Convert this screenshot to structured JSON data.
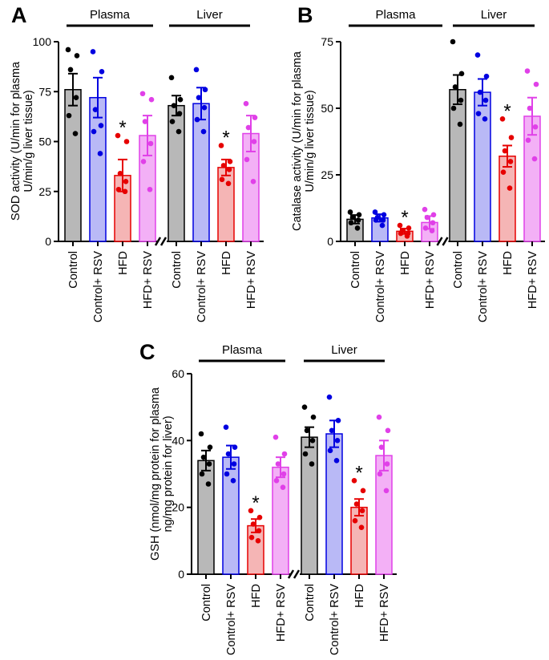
{
  "chart_data": [
    {
      "panel": "A",
      "type": "bar",
      "ylabel_lines": [
        "SOD activity (U/min for plasma",
        "U/min/g liver tissue)"
      ],
      "ylim": [
        0,
        100
      ],
      "yticks": [
        "0",
        "25",
        "50",
        "75",
        "100"
      ],
      "groups": [
        {
          "label": "Plasma",
          "categories": [
            "Control",
            "Control+ RSV",
            "HFD",
            "HFD+ RSV"
          ],
          "values": [
            76,
            72,
            33,
            53
          ],
          "errors": [
            8,
            10,
            8,
            10
          ],
          "significant": [
            false,
            false,
            true,
            false
          ],
          "points": [
            [
              96,
              93,
              86,
              72,
              63,
              54
            ],
            [
              95,
              85,
              66,
              58,
              55,
              44
            ],
            [
              53,
              50,
              34,
              30,
              26,
              25
            ],
            [
              74,
              71,
              60,
              49,
              40,
              26
            ]
          ]
        },
        {
          "label": "Liver",
          "categories": [
            "Control",
            "Control+ RSV",
            "HFD",
            "HFD+ RSV"
          ],
          "values": [
            68,
            69,
            37,
            54
          ],
          "errors": [
            5,
            8,
            4,
            9
          ],
          "significant": [
            false,
            false,
            true,
            false
          ],
          "points": [
            [
              82,
              71,
              68,
              64,
              60,
              55
            ],
            [
              86,
              76,
              72,
              67,
              61,
              55
            ],
            [
              48,
              40,
              38,
              36,
              31,
              29
            ],
            [
              69,
              62,
              57,
              50,
              41,
              30
            ]
          ]
        }
      ]
    },
    {
      "panel": "B",
      "type": "bar",
      "ylabel_lines": [
        "Catalase activity (U/min for plasma",
        "U/min/g liver tissue)"
      ],
      "ylim": [
        0,
        75
      ],
      "yticks": [
        "0",
        "25",
        "50",
        "75"
      ],
      "groups": [
        {
          "label": "Plasma",
          "categories": [
            "Control",
            "Control+ RSV",
            "HFD",
            "HFD+ RSV"
          ],
          "values": [
            8.3,
            8.8,
            3.8,
            7.1
          ],
          "errors": [
            1.6,
            1.4,
            1.0,
            2.4
          ],
          "significant": [
            false,
            false,
            true,
            false
          ],
          "points": [
            [
              11,
              10,
              9,
              8,
              7,
              5
            ],
            [
              11,
              10,
              9,
              8,
              8,
              6
            ],
            [
              6,
              5,
              4,
              3,
              3,
              2
            ],
            [
              12,
              10,
              9,
              7,
              5,
              4
            ]
          ]
        },
        {
          "label": "Liver",
          "categories": [
            "Control",
            "Control+ RSV",
            "HFD",
            "HFD+ RSV"
          ],
          "values": [
            57,
            56,
            32,
            47
          ],
          "errors": [
            5.5,
            5,
            4,
            7
          ],
          "significant": [
            false,
            false,
            true,
            false
          ],
          "points": [
            [
              75,
              63,
              58,
              53,
              50,
              44
            ],
            [
              70,
              62,
              56,
              53,
              48,
              46
            ],
            [
              46,
              39,
              34,
              30,
              26,
              20
            ],
            [
              64,
              59,
              50,
              43,
              38,
              31
            ]
          ]
        }
      ]
    },
    {
      "panel": "C",
      "type": "bar",
      "ylabel_lines": [
        "GSH (nmol/mg protein for plasma",
        "ng/mg protein for liver)"
      ],
      "ylim": [
        0,
        60
      ],
      "yticks": [
        "0",
        "20",
        "40",
        "60"
      ],
      "groups": [
        {
          "label": "Plasma",
          "categories": [
            "Control",
            "Control+ RSV",
            "HFD",
            "HFD+ RSV"
          ],
          "values": [
            34,
            35,
            14.5,
            32
          ],
          "errors": [
            3,
            3.5,
            2,
            3
          ],
          "significant": [
            false,
            false,
            true,
            false
          ],
          "points": [
            [
              42,
              38,
              35,
              33,
              30,
              27
            ],
            [
              44,
              38,
              36,
              33,
              30,
              28
            ],
            [
              19,
              17,
              15,
              13,
              11,
              10
            ],
            [
              41,
              36,
              33,
              30,
              28,
              26
            ]
          ]
        },
        {
          "label": "Liver",
          "categories": [
            "Control",
            "Control+ RSV",
            "HFD",
            "HFD+ RSV"
          ],
          "values": [
            41,
            42,
            20,
            35.5
          ],
          "errors": [
            3,
            4,
            2.5,
            4.5
          ],
          "significant": [
            false,
            false,
            true,
            false
          ],
          "points": [
            [
              50,
              47,
              43,
              40,
              36,
              33
            ],
            [
              53,
              46,
              43,
              40,
              37,
              34
            ],
            [
              28,
              25,
              21,
              19,
              16,
              14
            ],
            [
              47,
              43,
              38,
              33,
              30,
              25
            ]
          ]
        }
      ]
    }
  ],
  "style": {
    "colors": {
      "fill": [
        "#b8b8b8",
        "#b9b9f6",
        "#f5b5b5",
        "#f3b0f6"
      ],
      "dot": [
        "#000000",
        "#0000e0",
        "#e60000",
        "#e040e8"
      ],
      "edge": [
        "#000000",
        "#0000e0",
        "#e60000",
        "#e040e8"
      ]
    },
    "significance_marker": "*"
  }
}
